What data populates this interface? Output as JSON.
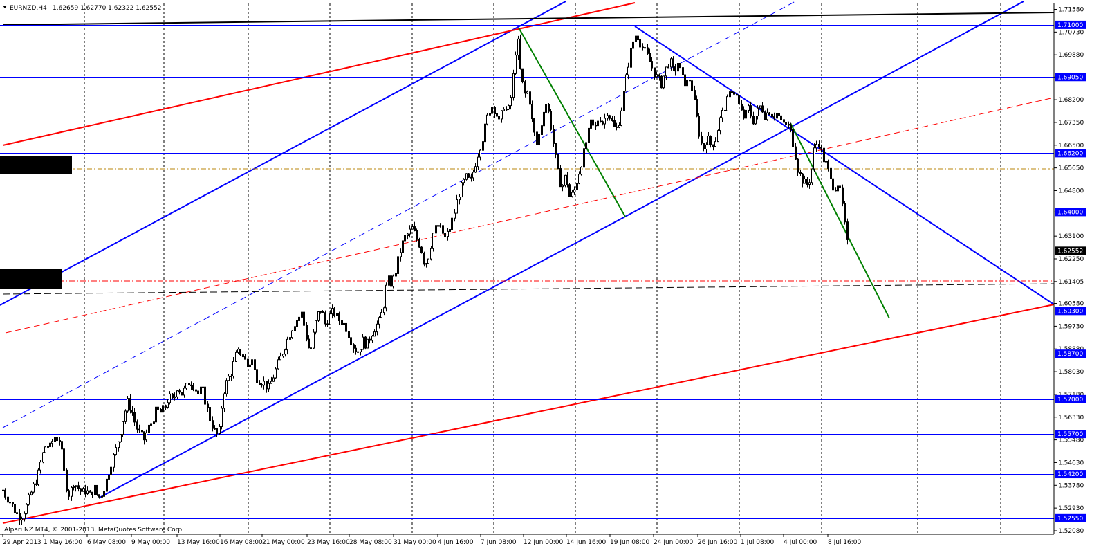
{
  "window": {
    "symbol_label": "EURNZD,H4",
    "quote_label": "1.62659 1.62770 1.62322 1.62552",
    "copyright": "Alpari NZ MT4, © 2001-2013, MetaQuotes Software Corp."
  },
  "colors": {
    "background": "#ffffff",
    "candle": "#000000",
    "level_line": "#0000ff",
    "channel_line": "#0000ff",
    "red_line": "#ff0000",
    "green_line": "#008000",
    "grid": "#000000",
    "price_tag_bg": "#0000ff",
    "current_tag_bg": "#000000",
    "dotdash_line": "#b8860b"
  },
  "chart_data": {
    "type": "candlestick",
    "ylim": [
      1.5195,
      1.718
    ],
    "y_ticks": [
      1.7158,
      1.7073,
      1.6988,
      1.6905,
      1.682,
      1.6735,
      1.665,
      1.6565,
      1.648,
      1.64,
      1.631,
      1.6225,
      1.614,
      1.6058,
      1.5973,
      1.5888,
      1.5803,
      1.5718,
      1.5633,
      1.5548,
      1.5463,
      1.5378,
      1.5293,
      1.5208
    ],
    "y_tick_labels": [
      "1.71580",
      "1.70730",
      "1.69880",
      "1.69050",
      "1.68200",
      "1.67350",
      "1.66500",
      "1.65650",
      "1.64800",
      "1.64000",
      "1.63100",
      "1.62250",
      "1.61405",
      "1.60580",
      "1.59730",
      "1.58880",
      "1.58030",
      "1.57180",
      "1.56330",
      "1.55480",
      "1.54630",
      "1.53780",
      "1.52930",
      "1.52080"
    ],
    "x_labels": [
      "29 Apr 2013",
      "1 May 16:00",
      "6 May 08:00",
      "9 May 00:00",
      "13 May 16:00",
      "16 May 08:00",
      "21 May 00:00",
      "23 May 16:00",
      "28 May 08:00",
      "31 May 00:00",
      "4 Jun 16:00",
      "7 Jun 08:00",
      "12 Jun 00:00",
      "14 Jun 16:00",
      "19 Jun 08:00",
      "24 Jun 00:00",
      "26 Jun 16:00",
      "1 Jul 08:00",
      "4 Jul 00:00",
      "8 Jul 16:00"
    ],
    "levels": [
      {
        "price": 1.71,
        "label": "1.71000"
      },
      {
        "price": 1.6905,
        "label": "1.69050"
      },
      {
        "price": 1.662,
        "label": "1.66200"
      },
      {
        "price": 1.64,
        "label": "1.64000"
      },
      {
        "price": 1.603,
        "label": "1.60300"
      },
      {
        "price": 1.587,
        "label": "1.58700"
      },
      {
        "price": 1.57,
        "label": "1.57000"
      },
      {
        "price": 1.557,
        "label": "1.55700"
      },
      {
        "price": 1.542,
        "label": "1.54200"
      },
      {
        "price": 1.5255,
        "label": "1.52550"
      }
    ],
    "current_price": {
      "price": 1.62552,
      "label": "1.62552"
    },
    "close_path": [
      [
        0,
        1.538
      ],
      [
        8,
        1.534
      ],
      [
        16,
        1.531
      ],
      [
        24,
        1.527
      ],
      [
        30,
        1.526
      ],
      [
        38,
        1.53
      ],
      [
        46,
        1.536
      ],
      [
        54,
        1.541
      ],
      [
        60,
        1.548
      ],
      [
        66,
        1.553
      ],
      [
        72,
        1.552
      ],
      [
        78,
        1.556
      ],
      [
        86,
        1.555
      ],
      [
        90,
        1.548
      ],
      [
        94,
        1.539
      ],
      [
        100,
        1.534
      ],
      [
        106,
        1.539
      ],
      [
        112,
        1.537
      ],
      [
        118,
        1.535
      ],
      [
        124,
        1.536
      ],
      [
        130,
        1.534
      ],
      [
        136,
        1.537
      ],
      [
        142,
        1.533
      ],
      [
        148,
        1.535
      ],
      [
        154,
        1.54
      ],
      [
        160,
        1.546
      ],
      [
        166,
        1.55
      ],
      [
        172,
        1.556
      ],
      [
        178,
        1.563
      ],
      [
        184,
        1.569
      ],
      [
        190,
        1.566
      ],
      [
        196,
        1.56
      ],
      [
        202,
        1.557
      ],
      [
        208,
        1.555
      ],
      [
        214,
        1.559
      ],
      [
        220,
        1.562
      ],
      [
        226,
        1.566
      ],
      [
        232,
        1.565
      ],
      [
        238,
        1.567
      ],
      [
        244,
        1.571
      ],
      [
        250,
        1.569
      ],
      [
        256,
        1.575
      ],
      [
        262,
        1.572
      ],
      [
        268,
        1.574
      ],
      [
        274,
        1.577
      ],
      [
        280,
        1.575
      ],
      [
        286,
        1.572
      ],
      [
        292,
        1.574
      ],
      [
        298,
        1.568
      ],
      [
        304,
        1.562
      ],
      [
        310,
        1.558
      ],
      [
        316,
        1.556
      ],
      [
        322,
        1.572
      ],
      [
        328,
        1.577
      ],
      [
        334,
        1.58
      ],
      [
        340,
        1.586
      ],
      [
        346,
        1.588
      ],
      [
        352,
        1.586
      ],
      [
        358,
        1.582
      ],
      [
        364,
        1.585
      ],
      [
        370,
        1.578
      ],
      [
        376,
        1.577
      ],
      [
        382,
        1.576
      ],
      [
        388,
        1.574
      ],
      [
        394,
        1.578
      ],
      [
        400,
        1.582
      ],
      [
        406,
        1.586
      ],
      [
        412,
        1.59
      ],
      [
        418,
        1.594
      ],
      [
        424,
        1.598
      ],
      [
        430,
        1.6
      ],
      [
        436,
        1.602
      ],
      [
        442,
        1.594
      ],
      [
        448,
        1.587
      ],
      [
        452,
        1.593
      ],
      [
        458,
        1.601
      ],
      [
        464,
        1.604
      ],
      [
        470,
        1.598
      ],
      [
        476,
        1.601
      ],
      [
        482,
        1.603
      ],
      [
        488,
        1.6
      ],
      [
        494,
        1.599
      ],
      [
        500,
        1.597
      ],
      [
        506,
        1.593
      ],
      [
        512,
        1.589
      ],
      [
        518,
        1.588
      ],
      [
        524,
        1.592
      ],
      [
        530,
        1.59
      ],
      [
        536,
        1.594
      ],
      [
        542,
        1.597
      ],
      [
        548,
        1.599
      ],
      [
        554,
        1.604
      ],
      [
        560,
        1.615
      ],
      [
        566,
        1.613
      ],
      [
        572,
        1.618
      ],
      [
        578,
        1.625
      ],
      [
        584,
        1.63
      ],
      [
        590,
        1.632
      ],
      [
        596,
        1.634
      ],
      [
        602,
        1.63
      ],
      [
        608,
        1.627
      ],
      [
        614,
        1.62
      ],
      [
        620,
        1.624
      ],
      [
        626,
        1.632
      ],
      [
        632,
        1.635
      ],
      [
        638,
        1.633
      ],
      [
        644,
        1.63
      ],
      [
        650,
        1.634
      ],
      [
        656,
        1.639
      ],
      [
        662,
        1.646
      ],
      [
        668,
        1.65
      ],
      [
        674,
        1.653
      ],
      [
        680,
        1.651
      ],
      [
        686,
        1.657
      ],
      [
        692,
        1.663
      ],
      [
        698,
        1.668
      ],
      [
        704,
        1.675
      ],
      [
        710,
        1.68
      ],
      [
        716,
        1.678
      ],
      [
        722,
        1.673
      ],
      [
        728,
        1.68
      ],
      [
        734,
        1.677
      ],
      [
        740,
        1.685
      ],
      [
        744,
        1.698
      ],
      [
        748,
        1.705
      ],
      [
        752,
        1.693
      ],
      [
        758,
        1.684
      ],
      [
        764,
        1.685
      ],
      [
        770,
        1.672
      ],
      [
        776,
        1.665
      ],
      [
        782,
        1.672
      ],
      [
        788,
        1.682
      ],
      [
        794,
        1.676
      ],
      [
        800,
        1.665
      ],
      [
        806,
        1.655
      ],
      [
        812,
        1.649
      ],
      [
        818,
        1.654
      ],
      [
        824,
        1.645
      ],
      [
        830,
        1.648
      ],
      [
        836,
        1.654
      ],
      [
        842,
        1.66
      ],
      [
        848,
        1.667
      ],
      [
        854,
        1.673
      ],
      [
        860,
        1.671
      ],
      [
        866,
        1.676
      ],
      [
        872,
        1.673
      ],
      [
        878,
        1.678
      ],
      [
        884,
        1.674
      ],
      [
        890,
        1.67
      ],
      [
        896,
        1.675
      ],
      [
        902,
        1.685
      ],
      [
        908,
        1.695
      ],
      [
        914,
        1.703
      ],
      [
        920,
        1.707
      ],
      [
        926,
        1.703
      ],
      [
        932,
        1.7
      ],
      [
        938,
        1.697
      ],
      [
        944,
        1.693
      ],
      [
        950,
        1.69
      ],
      [
        956,
        1.688
      ],
      [
        962,
        1.693
      ],
      [
        968,
        1.697
      ],
      [
        974,
        1.692
      ],
      [
        980,
        1.696
      ],
      [
        986,
        1.69
      ],
      [
        992,
        1.688
      ],
      [
        998,
        1.69
      ],
      [
        1004,
        1.68
      ],
      [
        1010,
        1.67
      ],
      [
        1016,
        1.663
      ],
      [
        1022,
        1.668
      ],
      [
        1028,
        1.665
      ],
      [
        1034,
        1.667
      ],
      [
        1040,
        1.674
      ],
      [
        1046,
        1.678
      ],
      [
        1052,
        1.682
      ],
      [
        1058,
        1.686
      ],
      [
        1064,
        1.684
      ],
      [
        1070,
        1.678
      ],
      [
        1076,
        1.675
      ],
      [
        1082,
        1.679
      ],
      [
        1088,
        1.674
      ],
      [
        1094,
        1.677
      ],
      [
        1100,
        1.68
      ],
      [
        1106,
        1.676
      ],
      [
        1112,
        1.678
      ],
      [
        1118,
        1.676
      ],
      [
        1124,
        1.677
      ],
      [
        1130,
        1.673
      ],
      [
        1136,
        1.673
      ],
      [
        1142,
        1.671
      ],
      [
        1148,
        1.664
      ],
      [
        1154,
        1.655
      ],
      [
        1160,
        1.652
      ],
      [
        1166,
        1.65
      ],
      [
        1172,
        1.653
      ],
      [
        1178,
        1.665
      ],
      [
        1184,
        1.666
      ],
      [
        1190,
        1.66
      ],
      [
        1196,
        1.657
      ],
      [
        1200,
        1.652
      ],
      [
        1206,
        1.649
      ],
      [
        1212,
        1.651
      ],
      [
        1218,
        1.642
      ],
      [
        1222,
        1.633
      ],
      [
        1226,
        1.6255
      ]
    ]
  }
}
